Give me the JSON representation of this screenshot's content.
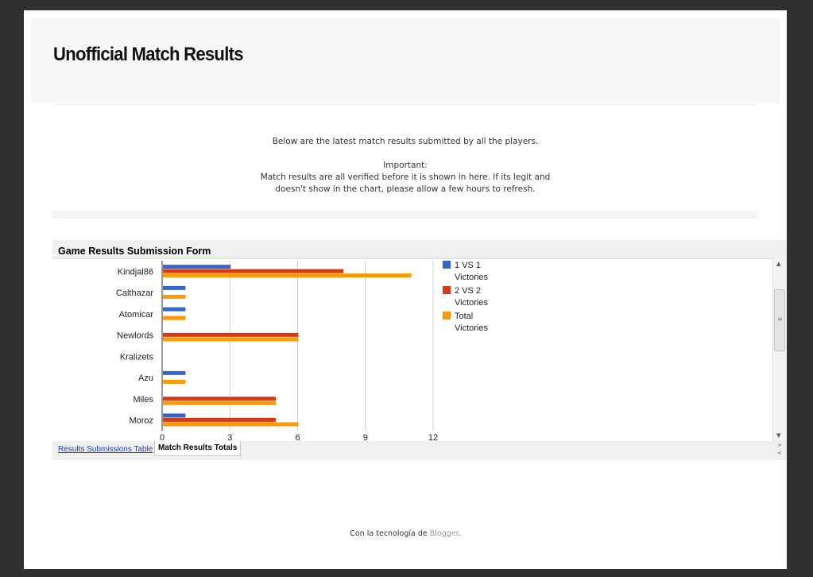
{
  "blog": {
    "title": "Unofficial Match Results"
  },
  "intro": {
    "line1": "Below are the latest match results submitted by all the players.",
    "important_label": "Important:",
    "line2": "Match results are all verified before it is shown in here. If its legit and",
    "line3": "doesn't show in the chart, please allow a few hours to refresh."
  },
  "embed": {
    "title": "Game Results Submission Form",
    "tabs": {
      "submissions_table": "Results Submissions Table",
      "totals": "Match Results Totals"
    },
    "scroll": {
      "up": "▲",
      "down": "▼",
      "grip": "≡",
      "tab_next": ">",
      "tab_prev": "<"
    }
  },
  "chart_data": {
    "type": "bar",
    "orientation": "horizontal",
    "categories": [
      "Kindjal86",
      "Calthazar",
      "Atomicar",
      "Newlords",
      "Kralizets",
      "Azu",
      "Miles",
      "Moroz"
    ],
    "series": [
      {
        "name": "1 VS 1 Victories",
        "color": "#3366cc",
        "values": [
          3,
          1,
          1,
          0,
          0,
          1,
          0,
          1
        ]
      },
      {
        "name": "2 VS 2 Victories",
        "color": "#dc3912",
        "values": [
          8,
          0,
          0,
          6,
          0,
          0,
          5,
          5
        ]
      },
      {
        "name": "Total Victories",
        "color": "#ff9900",
        "values": [
          11,
          1,
          1,
          6,
          0,
          1,
          5,
          6
        ]
      }
    ],
    "xticks": [
      "0",
      "3",
      "6",
      "9",
      "12"
    ],
    "xlim": [
      0,
      12
    ],
    "grid": true,
    "legend_position": "right"
  },
  "footer": {
    "prefix": "Con la tecnología de ",
    "link": "Blogger",
    "suffix": "."
  }
}
